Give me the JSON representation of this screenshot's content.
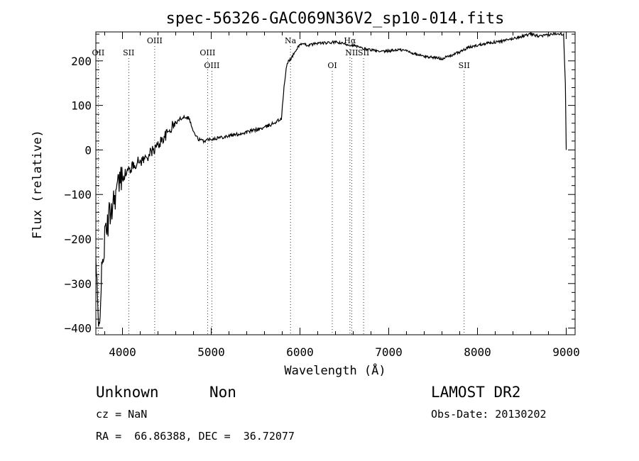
{
  "chart_data": {
    "type": "line",
    "title": "spec-56326-GAC069N36V2_sp10-014.fits",
    "xlabel": "Wavelength (Å)",
    "ylabel": "Flux (relative)",
    "xlim": [
      3700,
      9100
    ],
    "ylim": [
      -415,
      265
    ],
    "x_ticks": [
      4000,
      5000,
      6000,
      7000,
      8000,
      9000
    ],
    "y_ticks": [
      -400,
      -300,
      -200,
      -100,
      0,
      100,
      200
    ],
    "grid": false,
    "series": [
      {
        "x": [
          3700,
          3730,
          3760,
          3800,
          3850,
          3900,
          3950,
          4000,
          4050,
          4100,
          4150,
          4200,
          4250,
          4300,
          4350,
          4400,
          4450,
          4500,
          4550,
          4600,
          4650,
          4700,
          4750,
          4800,
          4850,
          4900,
          4950,
          5000,
          5100,
          5200,
          5300,
          5400,
          5500,
          5600,
          5700,
          5790,
          5820,
          5850,
          5870,
          5900,
          5950,
          6000,
          6100,
          6200,
          6300,
          6400,
          6500,
          6600,
          6700,
          6800,
          6900,
          7000,
          7100,
          7200,
          7300,
          7400,
          7500,
          7600,
          7700,
          7800,
          7900,
          8000,
          8100,
          8200,
          8300,
          8400,
          8500,
          8600,
          8700,
          8800,
          8900,
          8970,
          8990,
          9000
        ],
        "y": [
          -250,
          -410,
          -300,
          -200,
          -150,
          -110,
          -80,
          -60,
          -50,
          -40,
          -30,
          -25,
          -20,
          -10,
          0,
          10,
          25,
          35,
          50,
          60,
          70,
          75,
          72,
          40,
          25,
          20,
          22,
          25,
          28,
          32,
          35,
          40,
          45,
          50,
          60,
          70,
          140,
          190,
          200,
          205,
          222,
          238,
          235,
          240,
          240,
          242,
          238,
          235,
          228,
          225,
          220,
          222,
          225,
          223,
          215,
          210,
          208,
          205,
          212,
          220,
          230,
          235,
          240,
          242,
          245,
          250,
          255,
          260,
          255,
          258,
          262,
          260,
          150,
          0
        ]
      }
    ],
    "line_labels": [
      {
        "label": "OII",
        "x": 3727,
        "row": "mid"
      },
      {
        "label": "SII",
        "x": 4070,
        "row": "mid"
      },
      {
        "label": "OIII",
        "x": 4363,
        "row": "top"
      },
      {
        "label": "OIII",
        "x": 4959,
        "row": "mid"
      },
      {
        "label": "OIII",
        "x": 5007,
        "row": "low"
      },
      {
        "label": "Na",
        "x": 5893,
        "row": "top"
      },
      {
        "label": "OI",
        "x": 6364,
        "row": "low"
      },
      {
        "label": "Hα",
        "x": 6563,
        "row": "top"
      },
      {
        "label": "NII",
        "x": 6583,
        "row": "mid"
      },
      {
        "label": "SII",
        "x": 6717,
        "row": "mid"
      },
      {
        "label": "SII",
        "x": 7850,
        "row": "low"
      }
    ]
  },
  "info": {
    "class_label": "Unknown",
    "subclass_label": "Non",
    "survey": "LAMOST DR2",
    "cz": "cz = NaN",
    "obs_date": "Obs-Date: 20130202",
    "coords": "RA =  66.86388, DEC =  36.72077"
  }
}
